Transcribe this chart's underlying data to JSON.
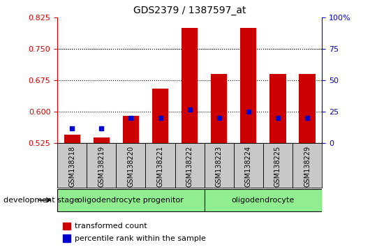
{
  "title": "GDS2379 / 1387597_at",
  "samples": [
    "GSM138218",
    "GSM138219",
    "GSM138220",
    "GSM138221",
    "GSM138222",
    "GSM138223",
    "GSM138224",
    "GSM138225",
    "GSM138229"
  ],
  "transformed_count": [
    0.545,
    0.538,
    0.59,
    0.655,
    0.8,
    0.69,
    0.8,
    0.69,
    0.69
  ],
  "percentile_rank": [
    12,
    12,
    20,
    20,
    27,
    20,
    25,
    20,
    20
  ],
  "base": 0.525,
  "ylim_left": [
    0.525,
    0.825
  ],
  "ylim_right": [
    0,
    100
  ],
  "yticks_left": [
    0.525,
    0.6,
    0.675,
    0.75,
    0.825
  ],
  "yticks_right": [
    0,
    25,
    50,
    75,
    100
  ],
  "bar_color": "#CC0000",
  "percentile_color": "#0000CC",
  "sample_bg_color": "#C8C8C8",
  "group_bg_color": "#90EE90",
  "left_tick_color": "#CC0000",
  "right_tick_color": "#0000CC",
  "legend_items": [
    {
      "label": "transformed count",
      "color": "#CC0000"
    },
    {
      "label": "percentile rank within the sample",
      "color": "#0000CC"
    }
  ],
  "dev_stage_label": "development stage",
  "group_info": [
    {
      "label": "oligodendrocyte progenitor",
      "start": 0,
      "end": 4
    },
    {
      "label": "oligodendrocyte",
      "start": 5,
      "end": 8
    }
  ],
  "bar_width": 0.55
}
